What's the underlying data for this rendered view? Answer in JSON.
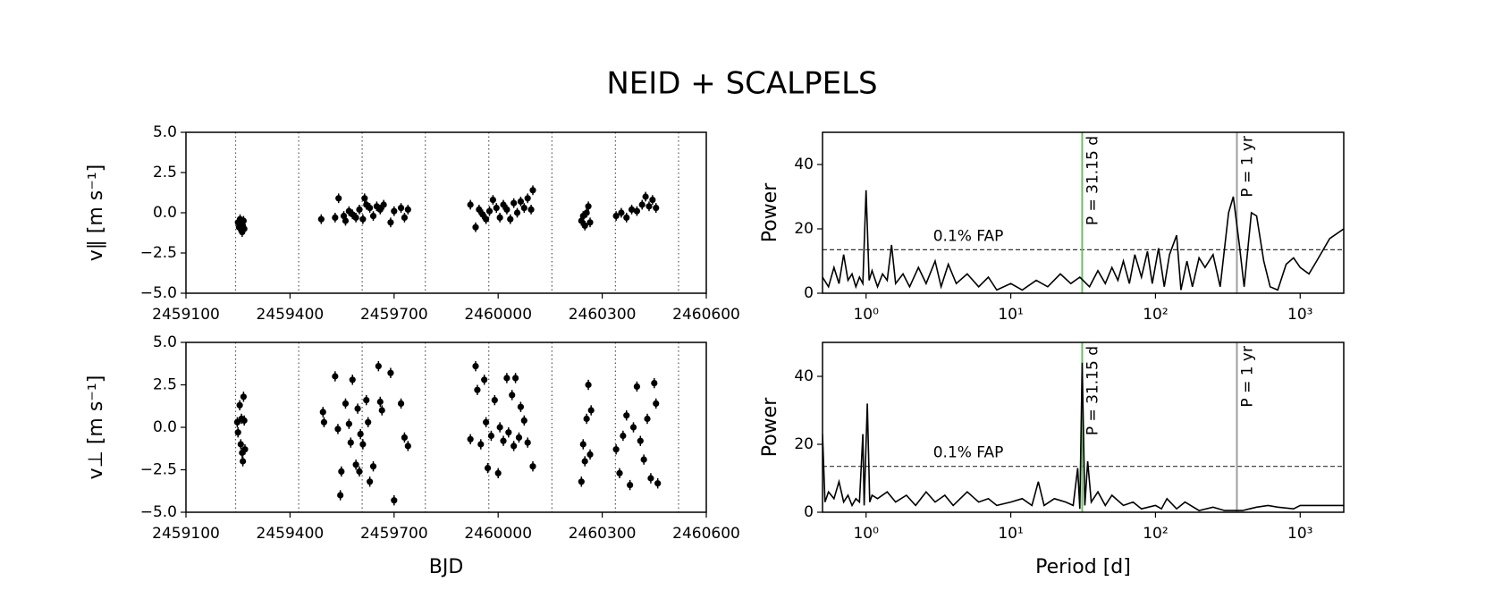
{
  "title": "NEID + SCALPELS",
  "chart_data": [
    {
      "type": "scatter",
      "ylabel": "v∥ [m s⁻¹]",
      "color": "#000000",
      "yerr": 0.3,
      "xlim": [
        2459100,
        2460600
      ],
      "xticks": [
        2459100,
        2459400,
        2459700,
        2460000,
        2460300,
        2460600
      ],
      "ylim": [
        -5,
        5
      ],
      "yticks": [
        {
          "value": -5,
          "label": "−5.0"
        },
        {
          "value": -2.5,
          "label": "−2.5"
        },
        {
          "value": 0,
          "label": "0.0"
        },
        {
          "value": 2.5,
          "label": "2.5"
        },
        {
          "value": 5,
          "label": "5.0"
        }
      ],
      "vlines": [
        2459243,
        2459425,
        2459608,
        2459790,
        2459973,
        2460155,
        2460338,
        2460520
      ],
      "x": [
        2459250,
        2459253,
        2459256,
        2459258,
        2459260,
        2459262,
        2459264,
        2459266,
        2459268,
        2459490,
        2459530,
        2459540,
        2459555,
        2459560,
        2459570,
        2459580,
        2459590,
        2459600,
        2459610,
        2459615,
        2459620,
        2459630,
        2459640,
        2459650,
        2459660,
        2459670,
        2459690,
        2459700,
        2459720,
        2459730,
        2459740,
        2459920,
        2459935,
        2459945,
        2459955,
        2459965,
        2459975,
        2459985,
        2459995,
        2460005,
        2460015,
        2460025,
        2460035,
        2460045,
        2460055,
        2460065,
        2460075,
        2460085,
        2460095,
        2460100,
        2460240,
        2460245,
        2460250,
        2460255,
        2460260,
        2460265,
        2460340,
        2460355,
        2460370,
        2460385,
        2460400,
        2460415,
        2460425,
        2460435,
        2460445,
        2460455
      ],
      "values": [
        -0.6,
        -0.9,
        -0.4,
        -1.0,
        -0.7,
        -1.2,
        -0.8,
        -0.5,
        -1.0,
        -0.4,
        -0.3,
        0.9,
        -0.2,
        -0.5,
        0.1,
        -0.1,
        -0.3,
        0.2,
        -0.4,
        0.9,
        0.5,
        0.3,
        -0.2,
        0.4,
        0.2,
        0.5,
        -0.6,
        0.1,
        0.3,
        -0.3,
        0.2,
        0.5,
        -0.9,
        0.2,
        -0.1,
        -0.4,
        0.1,
        0.8,
        0.3,
        -0.3,
        0.5,
        0.2,
        -0.4,
        0.6,
        0.0,
        0.7,
        0.3,
        0.9,
        0.2,
        1.4,
        -0.5,
        -0.2,
        -0.8,
        0.0,
        0.4,
        -0.6,
        -0.2,
        0.0,
        -0.3,
        0.2,
        0.1,
        0.5,
        1.0,
        0.4,
        0.8,
        0.3
      ]
    },
    {
      "type": "line",
      "ylabel": "Power",
      "color": "#000000",
      "xscale": "log",
      "xlim": [
        0.5,
        2000
      ],
      "xticks": [
        {
          "value": 1,
          "label": "10⁰"
        },
        {
          "value": 10,
          "label": "10¹"
        },
        {
          "value": 100,
          "label": "10²"
        },
        {
          "value": 1000,
          "label": "10³"
        }
      ],
      "ylim": [
        0,
        50
      ],
      "yticks": [
        0,
        20,
        40
      ],
      "hline": {
        "y": 13.5,
        "label": "0.1% FAP"
      },
      "markers": [
        {
          "x": 31.15,
          "label": "P = 31.15 d",
          "color": "#6abf69"
        },
        {
          "x": 365.25,
          "label": "P = 1 yr",
          "color": "#a0a0a0"
        }
      ],
      "x": [
        0.5,
        0.55,
        0.6,
        0.65,
        0.7,
        0.75,
        0.8,
        0.85,
        0.9,
        0.95,
        1.0,
        1.05,
        1.1,
        1.2,
        1.3,
        1.4,
        1.5,
        1.6,
        1.8,
        2.0,
        2.3,
        2.6,
        3.0,
        3.3,
        3.7,
        4.2,
        5,
        6,
        7,
        8,
        10,
        12,
        15,
        18,
        22,
        26,
        30,
        35,
        40,
        45,
        50,
        55,
        60,
        66,
        72,
        80,
        88,
        95,
        105,
        115,
        125,
        140,
        150,
        165,
        180,
        200,
        220,
        250,
        280,
        320,
        345,
        380,
        410,
        460,
        500,
        560,
        620,
        700,
        800,
        900,
        1000,
        1150,
        1300,
        1600,
        2000
      ],
      "values": [
        5,
        2,
        8,
        3,
        12,
        4,
        6,
        2,
        5,
        3,
        32,
        4,
        7,
        2,
        6,
        4,
        15,
        3,
        6,
        2,
        8,
        3,
        10,
        2,
        9,
        3,
        6,
        2,
        5,
        1,
        3,
        1,
        4,
        2,
        6,
        3,
        5,
        2,
        7,
        3,
        8,
        4,
        10,
        3,
        12,
        5,
        13,
        3,
        14,
        2,
        12,
        18,
        1,
        10,
        2,
        11,
        8,
        12,
        2,
        25,
        30,
        15,
        2,
        25,
        24,
        10,
        2,
        1,
        9,
        11,
        8,
        6,
        10,
        17,
        20
      ]
    },
    {
      "type": "scatter",
      "ylabel": "v⊥ [m s⁻¹]",
      "xlabel": "BJD",
      "color": "#000000",
      "yerr": 0.3,
      "xlim": [
        2459100,
        2460600
      ],
      "xticks": [
        2459100,
        2459400,
        2459700,
        2460000,
        2460300,
        2460600
      ],
      "ylim": [
        -5,
        5
      ],
      "yticks": [
        {
          "value": -5,
          "label": "−5.0"
        },
        {
          "value": -2.5,
          "label": "−2.5"
        },
        {
          "value": 0,
          "label": "0.0"
        },
        {
          "value": 2.5,
          "label": "2.5"
        },
        {
          "value": 5,
          "label": "5.0"
        }
      ],
      "vlines": [
        2459243,
        2459425,
        2459608,
        2459790,
        2459973,
        2460155,
        2460338,
        2460520
      ],
      "x": [
        2459248,
        2459250,
        2459255,
        2459258,
        2459260,
        2459262,
        2459264,
        2459266,
        2459268,
        2459270,
        2459495,
        2459498,
        2459530,
        2459538,
        2459545,
        2459548,
        2459560,
        2459570,
        2459575,
        2459580,
        2459590,
        2459595,
        2459600,
        2459603,
        2459610,
        2459620,
        2459625,
        2459630,
        2459640,
        2459655,
        2459660,
        2459665,
        2459690,
        2459700,
        2459720,
        2459730,
        2459740,
        2459920,
        2459935,
        2459940,
        2459950,
        2459960,
        2459965,
        2459970,
        2459980,
        2459990,
        2460000,
        2460005,
        2460015,
        2460025,
        2460030,
        2460040,
        2460045,
        2460050,
        2460060,
        2460065,
        2460075,
        2460085,
        2460100,
        2460240,
        2460245,
        2460250,
        2460255,
        2460260,
        2460265,
        2460268,
        2460340,
        2460350,
        2460360,
        2460370,
        2460380,
        2460390,
        2460400,
        2460410,
        2460420,
        2460430,
        2460440,
        2460450,
        2460455,
        2460460
      ],
      "values": [
        0.3,
        -0.3,
        1.3,
        -1.0,
        0.5,
        -1.5,
        -2.0,
        1.8,
        0.4,
        -1.3,
        0.9,
        0.3,
        3.0,
        -0.1,
        -4.0,
        -2.6,
        1.4,
        0.2,
        -0.9,
        2.8,
        -2.2,
        1.1,
        -2.6,
        -0.4,
        -1.0,
        1.6,
        0.3,
        -3.2,
        -2.3,
        3.6,
        1.5,
        1.0,
        3.2,
        -4.3,
        1.4,
        -0.6,
        -1.1,
        -0.7,
        3.6,
        2.2,
        -1.0,
        2.8,
        0.3,
        -2.4,
        -0.5,
        1.6,
        -2.7,
        0.0,
        -0.8,
        2.9,
        -0.3,
        1.9,
        -1.1,
        2.9,
        -0.6,
        1.2,
        0.4,
        -0.9,
        -2.3,
        -3.2,
        -1.0,
        -2.0,
        0.5,
        2.5,
        -1.6,
        1.0,
        -1.3,
        -2.7,
        -0.5,
        0.7,
        -3.4,
        0.0,
        2.4,
        -0.8,
        -1.9,
        0.5,
        -3.0,
        2.6,
        1.4,
        -3.3
      ]
    },
    {
      "type": "line",
      "ylabel": "Power",
      "xlabel": "Period [d]",
      "color": "#000000",
      "xscale": "log",
      "xlim": [
        0.5,
        2000
      ],
      "xticks": [
        {
          "value": 1,
          "label": "10⁰"
        },
        {
          "value": 10,
          "label": "10¹"
        },
        {
          "value": 100,
          "label": "10²"
        },
        {
          "value": 1000,
          "label": "10³"
        }
      ],
      "ylim": [
        0,
        50
      ],
      "yticks": [
        0,
        20,
        40
      ],
      "hline": {
        "y": 13.5,
        "label": "0.1% FAP"
      },
      "markers": [
        {
          "x": 31.15,
          "label": "P = 31.15 d",
          "color": "#6abf69"
        },
        {
          "x": 365.25,
          "label": "P = 1 yr",
          "color": "#a0a0a0"
        }
      ],
      "x": [
        0.5,
        0.52,
        0.55,
        0.6,
        0.65,
        0.7,
        0.75,
        0.8,
        0.85,
        0.9,
        0.95,
        0.97,
        1.02,
        1.06,
        1.1,
        1.2,
        1.4,
        1.6,
        1.9,
        2.2,
        2.6,
        3,
        3.5,
        4,
        5,
        6,
        7,
        8,
        10,
        12,
        14,
        15.5,
        17,
        20,
        24,
        27,
        29,
        30,
        31.15,
        32.5,
        34,
        36,
        40,
        45,
        50,
        60,
        70,
        80,
        100,
        110,
        120,
        140,
        160,
        200,
        250,
        300,
        400,
        500,
        600,
        700,
        900,
        1000,
        2000
      ],
      "values": [
        23,
        3,
        6,
        4,
        9,
        3,
        5,
        2,
        4,
        3,
        23,
        2,
        32,
        3,
        5,
        4,
        6,
        3,
        5,
        2,
        6,
        3,
        5,
        2,
        6,
        3,
        4,
        2,
        3,
        4,
        2,
        9,
        2,
        4,
        3,
        2,
        13,
        1,
        44,
        2,
        15,
        3,
        6,
        2,
        5,
        2,
        3,
        1,
        2,
        1,
        4,
        1,
        3,
        0.5,
        1.5,
        0.5,
        0.5,
        1.5,
        2,
        1.5,
        1,
        2,
        2
      ]
    }
  ]
}
